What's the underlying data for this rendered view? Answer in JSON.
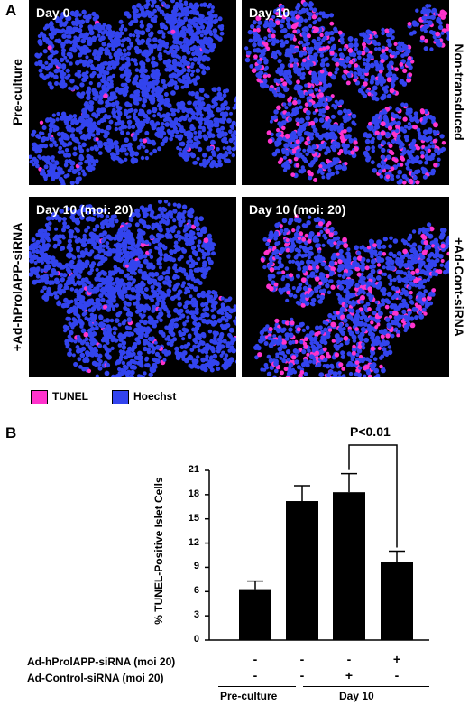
{
  "panelA": {
    "letter": "A",
    "images": [
      {
        "day": "Day 0",
        "pink": 0.01
      },
      {
        "day": "Day 10",
        "pink": 0.22
      },
      {
        "day": "Day 10 (moi: 20)",
        "pink": 0.02
      },
      {
        "day": "Day 10 (moi: 20)",
        "pink": 0.2
      }
    ],
    "side_labels": {
      "pre_culture": "Pre-culture",
      "non_transduced": "Non-transduced",
      "ad_hprol": "+Ad-hProlAPP-siRNA",
      "ad_cont": "+Ad-Cont-siRNA"
    },
    "legend": [
      {
        "label": "TUNEL",
        "color": "#ff33cc"
      },
      {
        "label": "Hoechst",
        "color": "#3344ee"
      }
    ]
  },
  "panelB": {
    "letter": "B",
    "significance": "P<0.01",
    "row_labels": [
      "Ad-hProlAPP-siRNA (moi 20)",
      "Ad-Control-siRNA (moi 20)"
    ],
    "signs": [
      [
        "-",
        "-",
        "-",
        "+"
      ],
      [
        "-",
        "-",
        "+",
        "-"
      ]
    ],
    "group_labels": [
      "Pre-culture",
      "Day 10"
    ]
  },
  "chart_data": {
    "type": "bar",
    "categories": [
      "",
      "",
      "",
      ""
    ],
    "values": [
      6.3,
      17.2,
      18.3,
      9.7
    ],
    "errors": [
      1.0,
      1.9,
      2.3,
      1.3
    ],
    "ylabel": "% TUNEL-Positive Islet Cells",
    "ylim": [
      0,
      21
    ],
    "yticks": [
      0,
      3,
      6,
      9,
      12,
      15,
      18,
      21
    ],
    "bar_color": "#000000"
  }
}
